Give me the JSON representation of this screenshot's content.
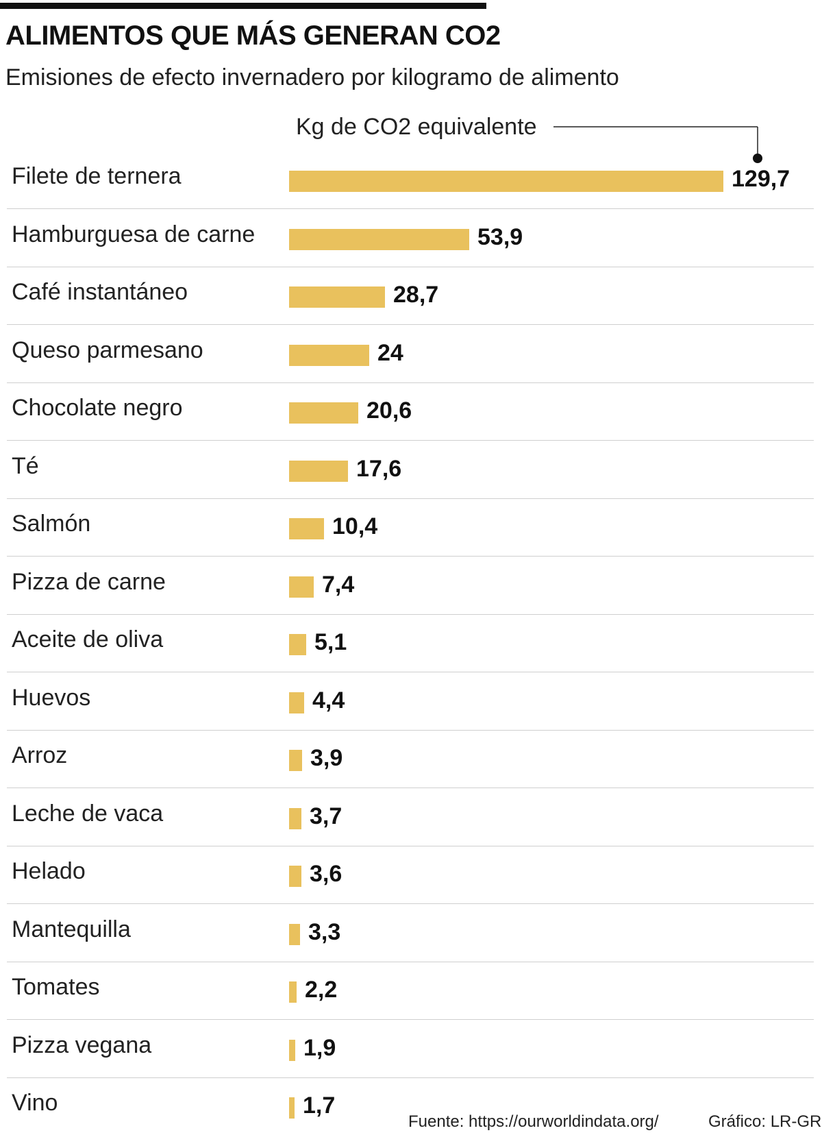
{
  "chart_data": {
    "type": "bar",
    "orientation": "horizontal",
    "title": "ALIMENTOS QUE MÁS GENERAN CO2",
    "subtitle": "Emisiones de efecto invernadero por kilogramo de alimento",
    "unit_label": "Kg de CO2 equivalente",
    "categories": [
      "Filete de ternera",
      "Hamburguesa de carne",
      "Café instantáneo",
      "Queso parmesano",
      "Chocolate negro",
      "Té",
      "Salmón",
      "Pizza de carne",
      "Aceite de oliva",
      "Huevos",
      "Arroz",
      "Leche de vaca",
      "Helado",
      "Mantequilla",
      "Tomates",
      "Pizza vegana",
      "Vino"
    ],
    "values": [
      129.7,
      53.9,
      28.7,
      24,
      20.6,
      17.6,
      10.4,
      7.4,
      5.1,
      4.4,
      3.9,
      3.7,
      3.6,
      3.3,
      2.2,
      1.9,
      1.7
    ],
    "value_labels": [
      "129,7",
      "53,9",
      "28,7",
      "24",
      "20,6",
      "17,6",
      "10,4",
      "7,4",
      "5,1",
      "4,4",
      "3,9",
      "3,7",
      "3,6",
      "3,3",
      "2,2",
      "1,9",
      "1,7"
    ],
    "xlim": [
      0,
      129.7
    ],
    "grid": false,
    "bar_color": "#e9c15d",
    "source": "Fuente: https://ourworldindata.org/",
    "credit": "Gráfico: LR-GR"
  }
}
